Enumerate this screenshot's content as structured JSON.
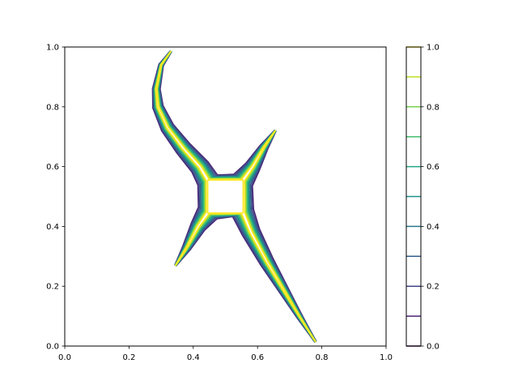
{
  "chart_data": {
    "type": "contour",
    "title": "",
    "xlabel": "",
    "ylabel": "",
    "xlim": [
      0,
      1
    ],
    "ylim": [
      0,
      1
    ],
    "xticks": [
      0.0,
      0.2,
      0.4,
      0.6,
      0.8,
      1.0
    ],
    "yticks": [
      0.0,
      0.2,
      0.4,
      0.6,
      0.8,
      1.0
    ],
    "xtick_labels": [
      "0.0",
      "0.2",
      "0.4",
      "0.6",
      "0.8",
      "1.0"
    ],
    "ytick_labels": [
      "0.0",
      "0.2",
      "0.4",
      "0.6",
      "0.8",
      "1.0"
    ],
    "grid": false,
    "colormap": "viridis",
    "levels": [
      0.0,
      0.1,
      0.2,
      0.3,
      0.4,
      0.5,
      0.6,
      0.7,
      0.8,
      0.9,
      1.0
    ],
    "level_colors": [
      "#440154",
      "#482475",
      "#414487",
      "#355f8d",
      "#2a788e",
      "#21918c",
      "#22a884",
      "#44bf70",
      "#7ad151",
      "#bddf26",
      "#fde725"
    ],
    "colorbar": {
      "range": [
        0.0,
        1.0
      ],
      "ticks": [
        0.0,
        0.2,
        0.4,
        0.6,
        0.8,
        1.0
      ],
      "tick_labels": [
        "0.0",
        "0.2",
        "0.4",
        "0.6",
        "0.8",
        "1.0"
      ],
      "placement": "right"
    },
    "description_shapes": {
      "center_box": {
        "x": [
          0.445,
          0.555
        ],
        "y": [
          0.445,
          0.555
        ]
      },
      "arms": [
        {
          "name": "upper-left",
          "tip": [
            0.33,
            0.985
          ],
          "base": [
            0.445,
            0.555
          ]
        },
        {
          "name": "upper-right",
          "tip": [
            0.655,
            0.72
          ],
          "base": [
            0.555,
            0.555
          ]
        },
        {
          "name": "lower-left",
          "tip": [
            0.345,
            0.27
          ],
          "base": [
            0.445,
            0.445
          ]
        },
        {
          "name": "lower-right",
          "tip": [
            0.78,
            0.015
          ],
          "base": [
            0.555,
            0.445
          ]
        }
      ]
    }
  }
}
